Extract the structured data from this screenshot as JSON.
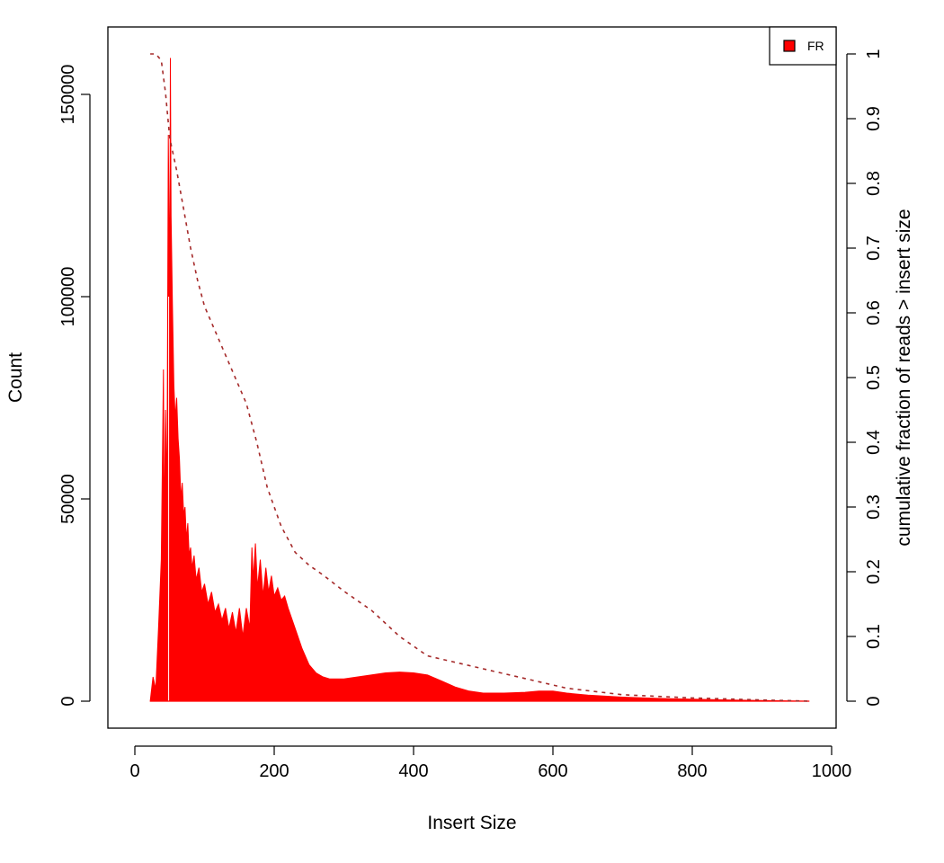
{
  "chart_data": {
    "type": "area",
    "title": "",
    "xlabel": "Insert Size",
    "ylabel": "Count",
    "y2label": "cumulative fraction of reads > insert size",
    "xlim": [
      0,
      1000
    ],
    "ylim": [
      0,
      160000
    ],
    "y2lim": [
      0,
      1
    ],
    "x_ticks": [
      0,
      200,
      400,
      600,
      800,
      1000
    ],
    "y_ticks": [
      0,
      50000,
      100000,
      150000
    ],
    "y2_ticks": [
      0,
      0.1,
      0.2,
      0.3,
      0.4,
      0.5,
      0.6,
      0.7,
      0.8,
      0.9,
      1
    ],
    "grid": false,
    "legend": {
      "position": "top-right",
      "entries": [
        {
          "label": "FR",
          "color": "#ff0000"
        }
      ]
    },
    "series": [
      {
        "name": "FR",
        "kind": "histogram",
        "color": "#ff0000",
        "x": [
          22,
          26,
          30,
          34,
          38,
          41,
          42,
          44,
          46,
          48,
          50,
          51,
          52,
          54,
          56,
          58,
          60,
          62,
          64,
          66,
          68,
          70,
          72,
          74,
          76,
          78,
          80,
          82,
          85,
          88,
          92,
          96,
          100,
          105,
          110,
          115,
          120,
          125,
          130,
          135,
          140,
          145,
          150,
          155,
          160,
          165,
          168,
          170,
          173,
          176,
          180,
          184,
          188,
          192,
          196,
          200,
          205,
          210,
          215,
          220,
          230,
          240,
          250,
          260,
          270,
          280,
          290,
          300,
          320,
          340,
          360,
          380,
          400,
          420,
          440,
          460,
          480,
          500,
          530,
          560,
          580,
          600,
          620,
          650,
          700,
          750,
          800,
          850,
          900,
          968
        ],
        "values": [
          0,
          6000,
          3000,
          18000,
          35000,
          82000,
          40000,
          72000,
          50000,
          140000,
          100000,
          159000,
          120000,
          98000,
          78000,
          70000,
          75000,
          65000,
          60000,
          50000,
          54000,
          46000,
          48000,
          40000,
          44000,
          36000,
          38000,
          33000,
          36000,
          30000,
          33000,
          27000,
          29000,
          24000,
          27000,
          22000,
          24000,
          20000,
          23000,
          18000,
          22000,
          17000,
          23000,
          16000,
          23000,
          18000,
          38000,
          30000,
          39000,
          28000,
          35000,
          26000,
          33000,
          27000,
          31000,
          26000,
          28000,
          25000,
          26000,
          23000,
          18000,
          13000,
          9000,
          7000,
          6000,
          5500,
          5500,
          5500,
          6000,
          6500,
          7000,
          7200,
          7000,
          6500,
          5000,
          3500,
          2500,
          2000,
          2000,
          2200,
          2500,
          2500,
          2000,
          1500,
          1000,
          700,
          500,
          300,
          150,
          0
        ]
      },
      {
        "name": "",
        "kind": "cumulative",
        "color": "#a52a2a",
        "line": "dashed",
        "axis": "right",
        "x": [
          22,
          30,
          38,
          44,
          50,
          60,
          70,
          80,
          90,
          100,
          120,
          140,
          160,
          175,
          190,
          210,
          230,
          250,
          270,
          300,
          340,
          380,
          420,
          460,
          500,
          560,
          620,
          700,
          800,
          900,
          968
        ],
        "values": [
          1.0,
          1.0,
          0.99,
          0.94,
          0.87,
          0.82,
          0.76,
          0.7,
          0.65,
          0.61,
          0.56,
          0.51,
          0.46,
          0.4,
          0.33,
          0.27,
          0.23,
          0.21,
          0.195,
          0.17,
          0.14,
          0.1,
          0.07,
          0.06,
          0.05,
          0.035,
          0.02,
          0.01,
          0.005,
          0.002,
          0.0
        ]
      }
    ]
  }
}
